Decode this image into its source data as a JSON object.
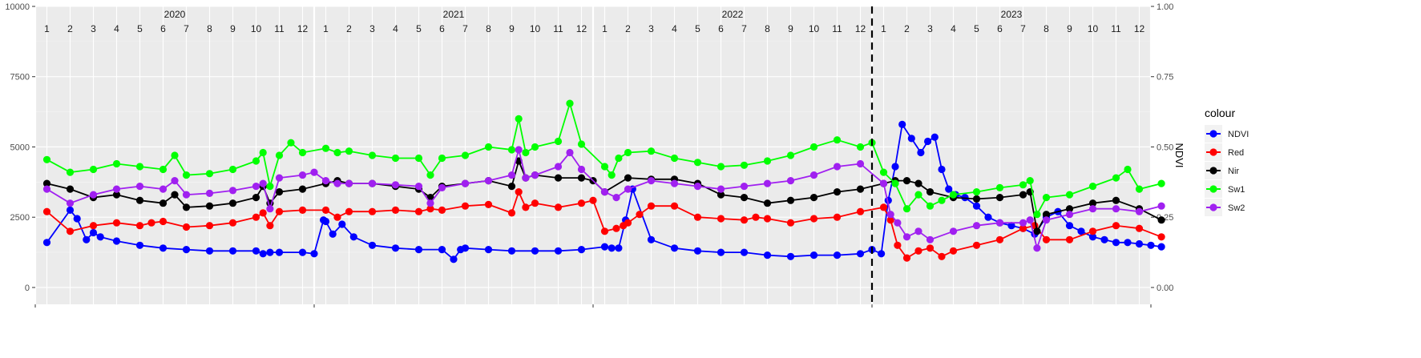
{
  "chart_data": {
    "type": "line",
    "title": "",
    "xlabel": "",
    "ylabel": "",
    "ylabel_right": "NDVI",
    "years": [
      "2020",
      "2021",
      "2022",
      "2023"
    ],
    "months": [
      "1",
      "2",
      "3",
      "4",
      "5",
      "6",
      "7",
      "8",
      "9",
      "10",
      "11",
      "12"
    ],
    "ylim": [
      -600,
      10000
    ],
    "yticks": [
      "0",
      "2500",
      "5000",
      "7500",
      "10000"
    ],
    "yticks_right": [
      "0.00",
      "0.25",
      "0.50",
      "0.75",
      "1.00"
    ],
    "vline_at": 36,
    "grid": true,
    "legend_position": "right",
    "legend_title": "colour",
    "background": "#ebebeb",
    "series": [
      {
        "name": "NDVI",
        "color": "#0000ff",
        "x": [
          0.0,
          1.0,
          1.3,
          1.7,
          2.0,
          2.3,
          3.0,
          4.0,
          5.0,
          6.0,
          7.0,
          8.0,
          9.0,
          9.3,
          9.6,
          10.0,
          11.0,
          11.5,
          11.9,
          12.0,
          12.3,
          12.7,
          13.2,
          14.0,
          15.0,
          16.0,
          17.0,
          17.5,
          17.8,
          18.0,
          19.0,
          20.0,
          21.0,
          22.0,
          23.0,
          24.0,
          24.3,
          24.6,
          24.9,
          25.2,
          26.0,
          27.0,
          28.0,
          29.0,
          30.0,
          31.0,
          32.0,
          33.0,
          34.0,
          35.0,
          35.5,
          35.9,
          36.2,
          36.5,
          36.8,
          37.2,
          37.6,
          37.9,
          38.2,
          38.5,
          38.8,
          39.1,
          39.5,
          40.0,
          40.5,
          41.0,
          41.5,
          42.0,
          42.5,
          43.0,
          43.5,
          44.0,
          44.5,
          45.0,
          45.5,
          46.0,
          46.5,
          47.0,
          47.5,
          47.95
        ],
        "y": [
          1600,
          2750,
          2450,
          1700,
          1950,
          1800,
          1650,
          1500,
          1400,
          1350,
          1300,
          1300,
          1300,
          1200,
          1250,
          1250,
          1250,
          1200,
          2400,
          2350,
          1900,
          2250,
          1800,
          1500,
          1400,
          1350,
          1350,
          1000,
          1350,
          1400,
          1350,
          1300,
          1300,
          1300,
          1350,
          1450,
          1400,
          1400,
          2400,
          3500,
          1700,
          1400,
          1300,
          1250,
          1250,
          1150,
          1100,
          1150,
          1150,
          1200,
          1350,
          1200,
          3100,
          4300,
          5800,
          5300,
          4800,
          5200,
          5350,
          4200,
          3500,
          3300,
          3200,
          2900,
          2500,
          2300,
          2200,
          2100,
          1900,
          2500,
          2700,
          2200,
          2000,
          1800,
          1700,
          1600,
          1600,
          1550,
          1500,
          1450
        ]
      },
      {
        "name": "Red",
        "color": "#ff0000",
        "x": [
          0.0,
          1.0,
          2.0,
          3.0,
          4.0,
          4.5,
          5.0,
          6.0,
          7.0,
          8.0,
          9.0,
          9.3,
          9.6,
          10.0,
          11.0,
          12.0,
          12.5,
          13.0,
          14.0,
          15.0,
          16.0,
          16.5,
          17.0,
          18.0,
          19.0,
          20.0,
          20.3,
          20.6,
          21.0,
          22.0,
          23.0,
          23.5,
          24.0,
          24.5,
          24.8,
          25.0,
          25.5,
          26.0,
          27.0,
          28.0,
          29.0,
          30.0,
          30.5,
          31.0,
          32.0,
          33.0,
          34.0,
          35.0,
          36.0,
          36.3,
          36.6,
          37.0,
          37.5,
          38.0,
          38.5,
          39.0,
          40.0,
          41.0,
          42.0,
          42.5,
          43.0,
          44.0,
          45.0,
          46.0,
          47.0,
          47.95
        ],
        "y": [
          2700,
          2000,
          2200,
          2300,
          2200,
          2300,
          2350,
          2150,
          2200,
          2300,
          2500,
          2650,
          2200,
          2700,
          2750,
          2750,
          2500,
          2700,
          2700,
          2750,
          2700,
          2800,
          2750,
          2900,
          2950,
          2650,
          3400,
          2850,
          3000,
          2850,
          3000,
          3100,
          2000,
          2100,
          2200,
          2300,
          2600,
          2900,
          2900,
          2500,
          2450,
          2400,
          2500,
          2450,
          2300,
          2450,
          2500,
          2700,
          2850,
          2400,
          1500,
          1050,
          1300,
          1400,
          1100,
          1300,
          1500,
          1700,
          2100,
          2200,
          1700,
          1700,
          2000,
          2200,
          2100,
          1800
        ]
      },
      {
        "name": "Nir",
        "color": "#000000",
        "x": [
          0.0,
          1.0,
          2.0,
          3.0,
          4.0,
          5.0,
          5.5,
          6.0,
          7.0,
          8.0,
          9.0,
          9.3,
          9.6,
          10.0,
          11.0,
          12.0,
          12.5,
          13.0,
          14.0,
          15.0,
          16.0,
          16.5,
          17.0,
          18.0,
          19.0,
          20.0,
          20.3,
          20.6,
          21.0,
          22.0,
          23.0,
          23.5,
          24.0,
          25.0,
          26.0,
          27.0,
          28.0,
          29.0,
          30.0,
          31.0,
          32.0,
          33.0,
          34.0,
          35.0,
          36.0,
          36.5,
          37.0,
          37.5,
          38.0,
          39.0,
          40.0,
          41.0,
          42.0,
          42.3,
          42.6,
          43.0,
          44.0,
          45.0,
          46.0,
          47.0,
          47.95
        ],
        "y": [
          3700,
          3500,
          3200,
          3300,
          3100,
          3000,
          3300,
          2850,
          2900,
          3000,
          3200,
          3600,
          3000,
          3400,
          3500,
          3700,
          3800,
          3700,
          3700,
          3600,
          3500,
          3200,
          3600,
          3700,
          3800,
          3600,
          4500,
          3900,
          4000,
          3900,
          3900,
          3800,
          3400,
          3900,
          3850,
          3850,
          3700,
          3300,
          3200,
          3000,
          3100,
          3200,
          3400,
          3500,
          3700,
          3800,
          3800,
          3700,
          3400,
          3200,
          3150,
          3200,
          3300,
          3400,
          2000,
          2600,
          2800,
          3000,
          3100,
          2800,
          2400
        ]
      },
      {
        "name": "Sw1",
        "color": "#00ff00",
        "x": [
          0.0,
          1.0,
          2.0,
          3.0,
          4.0,
          5.0,
          5.5,
          6.0,
          7.0,
          8.0,
          9.0,
          9.3,
          9.6,
          10.0,
          10.5,
          11.0,
          12.0,
          12.5,
          13.0,
          14.0,
          15.0,
          16.0,
          16.5,
          17.0,
          18.0,
          19.0,
          20.0,
          20.3,
          20.6,
          21.0,
          22.0,
          22.5,
          23.0,
          24.0,
          24.3,
          24.6,
          25.0,
          26.0,
          27.0,
          28.0,
          29.0,
          30.0,
          31.0,
          32.0,
          33.0,
          34.0,
          35.0,
          35.5,
          36.0,
          36.5,
          37.0,
          37.5,
          38.0,
          38.5,
          39.0,
          40.0,
          41.0,
          42.0,
          42.3,
          42.6,
          43.0,
          44.0,
          45.0,
          46.0,
          46.5,
          47.0,
          47.95
        ],
        "y": [
          4550,
          4100,
          4200,
          4400,
          4300,
          4200,
          4700,
          4000,
          4050,
          4200,
          4500,
          4800,
          3600,
          4700,
          5150,
          4800,
          4950,
          4800,
          4850,
          4700,
          4600,
          4600,
          4000,
          4600,
          4700,
          5000,
          4900,
          6000,
          4800,
          5000,
          5200,
          6550,
          5100,
          4300,
          4000,
          4600,
          4800,
          4850,
          4600,
          4450,
          4300,
          4350,
          4500,
          4700,
          5000,
          5250,
          5000,
          5150,
          4100,
          3700,
          2800,
          3300,
          2900,
          3100,
          3300,
          3400,
          3550,
          3650,
          3800,
          2600,
          3200,
          3300,
          3600,
          3900,
          4200,
          3500,
          3700
        ]
      },
      {
        "name": "Sw2",
        "color": "#a020f0",
        "x": [
          0.0,
          1.0,
          2.0,
          3.0,
          4.0,
          5.0,
          5.5,
          6.0,
          7.0,
          8.0,
          9.0,
          9.3,
          9.6,
          10.0,
          11.0,
          11.5,
          12.0,
          12.5,
          13.0,
          14.0,
          15.0,
          16.0,
          16.5,
          17.0,
          18.0,
          19.0,
          20.0,
          20.3,
          20.6,
          21.0,
          22.0,
          22.5,
          23.0,
          24.0,
          24.5,
          25.0,
          26.0,
          27.0,
          28.0,
          29.0,
          30.0,
          31.0,
          32.0,
          33.0,
          34.0,
          35.0,
          36.0,
          36.3,
          36.6,
          37.0,
          37.5,
          38.0,
          39.0,
          40.0,
          41.0,
          42.0,
          42.3,
          42.6,
          43.0,
          44.0,
          45.0,
          46.0,
          47.0,
          47.95
        ],
        "y": [
          3500,
          3000,
          3300,
          3500,
          3600,
          3500,
          3800,
          3300,
          3350,
          3450,
          3600,
          3700,
          2800,
          3900,
          4000,
          4100,
          3800,
          3700,
          3700,
          3700,
          3650,
          3600,
          3000,
          3550,
          3700,
          3800,
          4000,
          4900,
          3900,
          4000,
          4300,
          4800,
          4200,
          3400,
          3200,
          3500,
          3800,
          3700,
          3600,
          3500,
          3600,
          3700,
          3800,
          4000,
          4300,
          4400,
          3700,
          2600,
          2300,
          1800,
          2000,
          1700,
          2000,
          2200,
          2300,
          2300,
          2400,
          1400,
          2400,
          2600,
          2800,
          2800,
          2700,
          2900
        ]
      }
    ]
  }
}
